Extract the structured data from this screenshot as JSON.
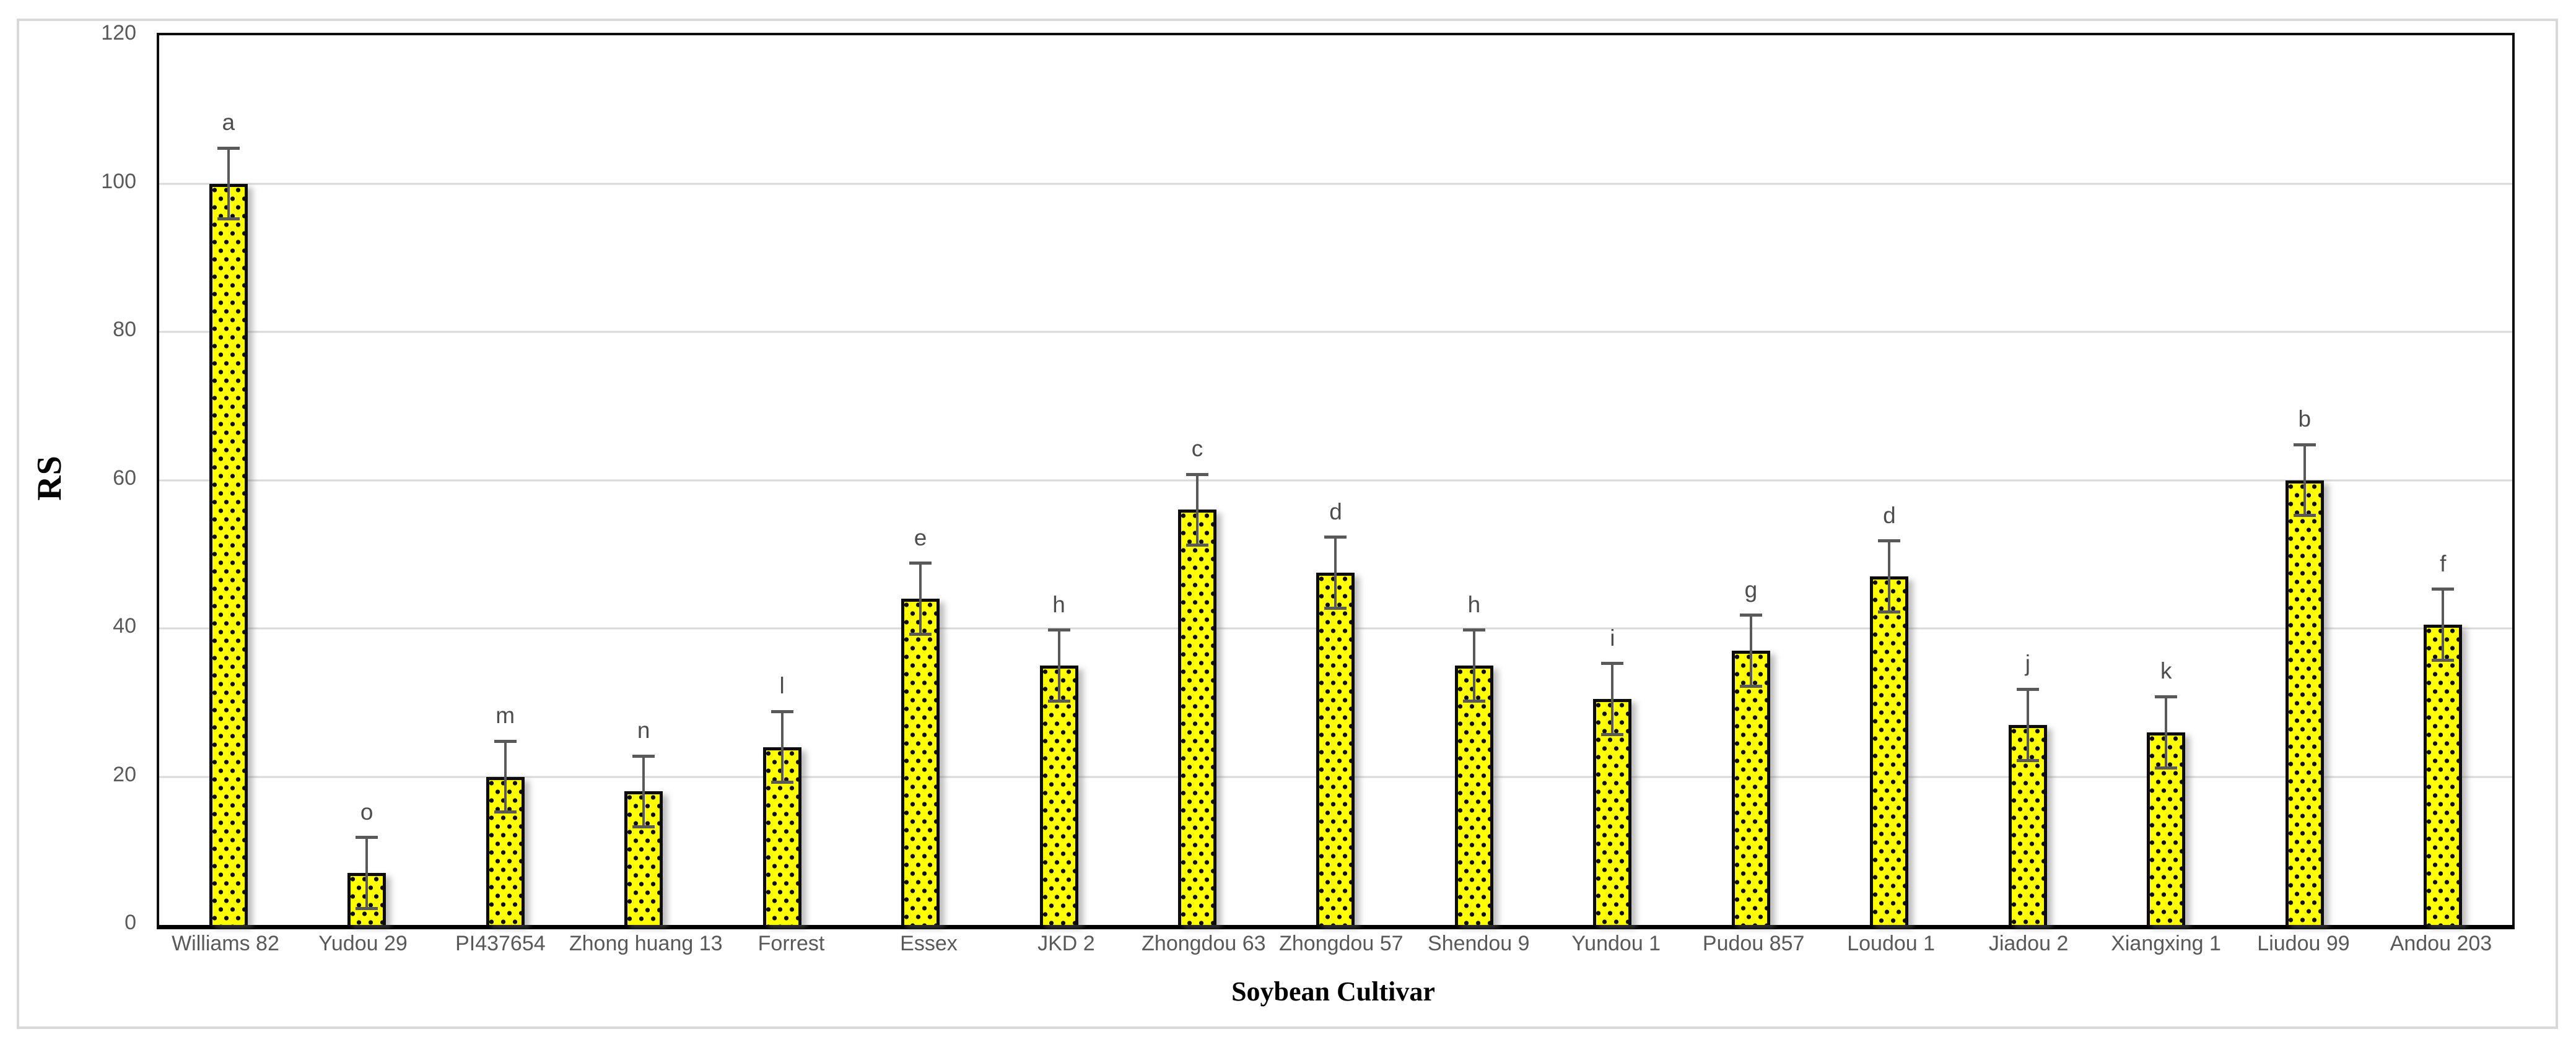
{
  "figure": {
    "background_color": "#ffffff",
    "border_color": "#d8d8d8"
  },
  "chart_data": {
    "type": "bar",
    "title": "",
    "xlabel": "Soybean Cultivar",
    "ylabel": "RS",
    "ylim": [
      0,
      120
    ],
    "yticks": [
      0,
      20,
      40,
      60,
      80,
      100,
      120
    ],
    "grid": "horizontal",
    "gridline_color": "#d9d9d9",
    "legend_position": "none",
    "bar_fill_color": "#ffff00",
    "bar_pattern": "black-dots",
    "bar_border_color": "#0c0c0c",
    "error_bar_color": "#595959",
    "letter_color": "#4d4d4d",
    "tick_label_color": "#595959",
    "categories": [
      "Williams 82",
      "Yudou 29",
      "PI437654",
      "Zhong huang 13",
      "Forrest",
      "Essex",
      "JKD 2",
      "Zhongdou 63",
      "Zhongdou 57",
      "Shendou 9",
      "Yundou 1",
      "Pudou 857",
      "Loudou 1",
      "Jiadou 2",
      "Xiangxing 1",
      "Liudou 99",
      "Andou 203"
    ],
    "values": [
      100,
      7,
      20,
      18,
      24,
      44,
      35,
      56,
      47.5,
      35,
      30.5,
      37,
      47,
      27,
      26,
      60,
      40.5
    ],
    "errors": [
      5,
      5,
      5,
      5,
      5,
      5,
      5,
      5,
      5,
      5,
      5,
      5,
      5,
      5,
      5,
      5,
      5
    ],
    "letters": [
      "a",
      "o",
      "m",
      "n",
      "l",
      "e",
      "h",
      "c",
      "d",
      "h",
      "i",
      "g",
      "d",
      "j",
      "k",
      "b",
      "f"
    ]
  }
}
